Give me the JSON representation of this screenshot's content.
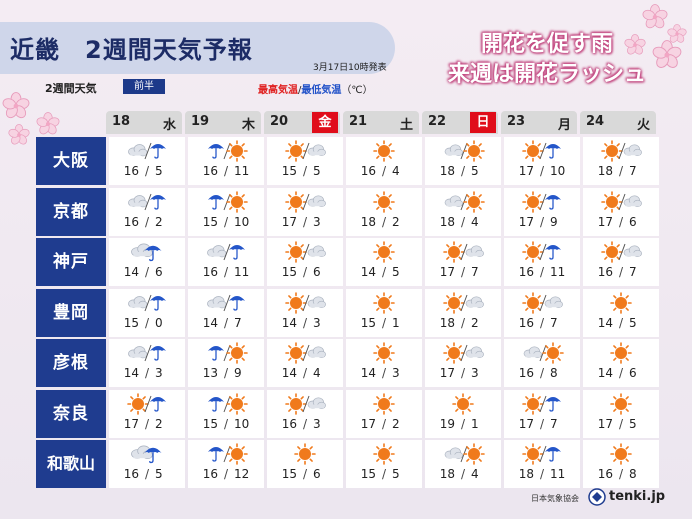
{
  "header": {
    "title": "近畿　2週間天気予報",
    "issued": "3月17日10時発表",
    "subtitle": "2週間天気",
    "period": "前半",
    "legend": {
      "high": "最高気温",
      "sep": "/",
      "low": "最低気温",
      "unit": "（℃）"
    }
  },
  "headline": {
    "line1": "開花を促す雨",
    "line2": "来週は開花ラッシュ"
  },
  "days": [
    {
      "num": "18",
      "dow": "水",
      "holiday": false
    },
    {
      "num": "19",
      "dow": "木",
      "holiday": false
    },
    {
      "num": "20",
      "dow": "金",
      "holiday": true
    },
    {
      "num": "21",
      "dow": "土",
      "holiday": false
    },
    {
      "num": "22",
      "dow": "日",
      "holiday": true
    },
    {
      "num": "23",
      "dow": "月",
      "holiday": false
    },
    {
      "num": "24",
      "dow": "火",
      "holiday": false
    }
  ],
  "cities": [
    {
      "name": "大阪",
      "forecast": [
        {
          "icon": "cloud-then-rain-icon",
          "high": "16",
          "low": "5"
        },
        {
          "icon": "rain-then-sun-icon",
          "high": "16",
          "low": "11"
        },
        {
          "icon": "sun-then-cloud-icon",
          "high": "15",
          "low": "5"
        },
        {
          "icon": "sun-icon",
          "high": "16",
          "low": "4"
        },
        {
          "icon": "cloud-then-sun-icon",
          "high": "18",
          "low": "5"
        },
        {
          "icon": "sun-then-rain-icon",
          "high": "17",
          "low": "10"
        },
        {
          "icon": "sun-then-cloud-icon",
          "high": "18",
          "low": "7"
        }
      ]
    },
    {
      "name": "京都",
      "forecast": [
        {
          "icon": "cloud-then-rain-icon",
          "high": "16",
          "low": "2"
        },
        {
          "icon": "rain-then-sun-icon",
          "high": "15",
          "low": "10"
        },
        {
          "icon": "sun-then-cloud-icon",
          "high": "17",
          "low": "3"
        },
        {
          "icon": "sun-icon",
          "high": "18",
          "low": "2"
        },
        {
          "icon": "cloud-then-sun-icon",
          "high": "18",
          "low": "4"
        },
        {
          "icon": "sun-then-rain-icon",
          "high": "17",
          "low": "9"
        },
        {
          "icon": "sun-then-cloud-icon",
          "high": "17",
          "low": "6"
        }
      ]
    },
    {
      "name": "神戸",
      "forecast": [
        {
          "icon": "rain-icon",
          "high": "14",
          "low": "6"
        },
        {
          "icon": "cloud-then-rain-icon",
          "high": "16",
          "low": "11"
        },
        {
          "icon": "sun-then-cloud-icon",
          "high": "15",
          "low": "6"
        },
        {
          "icon": "sun-icon",
          "high": "14",
          "low": "5"
        },
        {
          "icon": "sun-then-cloud-icon",
          "high": "17",
          "low": "7"
        },
        {
          "icon": "sun-then-rain-icon",
          "high": "16",
          "low": "11"
        },
        {
          "icon": "sun-then-cloud-icon",
          "high": "16",
          "low": "7"
        }
      ]
    },
    {
      "name": "豊岡",
      "forecast": [
        {
          "icon": "cloud-then-rain-icon",
          "high": "15",
          "low": "0"
        },
        {
          "icon": "cloud-then-rain-icon",
          "high": "14",
          "low": "7"
        },
        {
          "icon": "sun-then-cloud-icon",
          "high": "14",
          "low": "3"
        },
        {
          "icon": "sun-icon",
          "high": "15",
          "low": "1"
        },
        {
          "icon": "sun-then-cloud-icon",
          "high": "18",
          "low": "2"
        },
        {
          "icon": "sun-then-cloud-icon",
          "high": "16",
          "low": "7"
        },
        {
          "icon": "sun-icon",
          "high": "14",
          "low": "5"
        }
      ]
    },
    {
      "name": "彦根",
      "forecast": [
        {
          "icon": "cloud-then-rain-icon",
          "high": "14",
          "low": "3"
        },
        {
          "icon": "rain-then-sun-icon",
          "high": "13",
          "low": "9"
        },
        {
          "icon": "sun-then-cloud-icon",
          "high": "14",
          "low": "4"
        },
        {
          "icon": "sun-icon",
          "high": "14",
          "low": "3"
        },
        {
          "icon": "sun-then-cloud-icon",
          "high": "17",
          "low": "3"
        },
        {
          "icon": "cloud-then-sun-icon",
          "high": "16",
          "low": "8"
        },
        {
          "icon": "sun-icon",
          "high": "14",
          "low": "6"
        }
      ]
    },
    {
      "name": "奈良",
      "forecast": [
        {
          "icon": "sun-then-rain-icon",
          "high": "17",
          "low": "2"
        },
        {
          "icon": "rain-then-sun-icon",
          "high": "15",
          "low": "10"
        },
        {
          "icon": "sun-then-cloud-icon",
          "high": "16",
          "low": "3"
        },
        {
          "icon": "sun-icon",
          "high": "17",
          "low": "2"
        },
        {
          "icon": "sun-icon",
          "high": "19",
          "low": "1"
        },
        {
          "icon": "sun-then-rain-icon",
          "high": "17",
          "low": "7"
        },
        {
          "icon": "sun-icon",
          "high": "17",
          "low": "5"
        }
      ]
    },
    {
      "name": "和歌山",
      "forecast": [
        {
          "icon": "rain-icon",
          "high": "16",
          "low": "5"
        },
        {
          "icon": "rain-then-sun-icon",
          "high": "16",
          "low": "12"
        },
        {
          "icon": "sun-icon",
          "high": "15",
          "low": "6"
        },
        {
          "icon": "sun-icon",
          "high": "15",
          "low": "5"
        },
        {
          "icon": "cloud-then-sun-icon",
          "high": "18",
          "low": "4"
        },
        {
          "icon": "sun-then-rain-icon",
          "high": "18",
          "low": "11"
        },
        {
          "icon": "sun-icon",
          "high": "16",
          "low": "8"
        }
      ]
    }
  ],
  "colors": {
    "city_bg": "#1f3c8f",
    "holiday_red": "#e00d1a",
    "sun": "#f07a1c",
    "rain": "#2456c9",
    "cloud": "#b8c0cc",
    "headline_pink": "#c2467f"
  },
  "footer": {
    "source": "日本気象協会",
    "brand": "tenki.jp"
  }
}
